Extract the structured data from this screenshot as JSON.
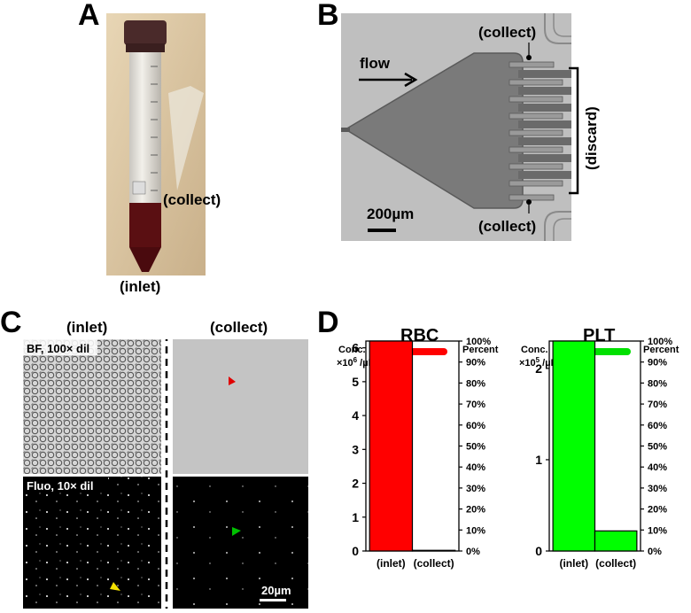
{
  "panels": {
    "a": {
      "letter": "A",
      "collect_label": "(collect)",
      "inlet_label": "(inlet)"
    },
    "b": {
      "letter": "B",
      "collect_top": "(collect)",
      "collect_bottom": "(collect)",
      "flow_label": "flow",
      "discard_label": "(discard)",
      "scale_label": "200µm"
    },
    "c": {
      "letter": "C",
      "inlet_header": "(inlet)",
      "collect_header": "(collect)",
      "bf_label": "BF, 100× dil",
      "fluo_label": "Fluo, 10× dil",
      "scale_label": "20µm"
    },
    "d": {
      "letter": "D"
    }
  },
  "chart_data": [
    {
      "type": "bar",
      "title": "RBC",
      "legend_color": "#ff0000",
      "bar_color": "#ff0000",
      "categories": [
        "(inlet)",
        "(collect)"
      ],
      "values": [
        6.2,
        0.02
      ],
      "ylabel_left": "Conc. ×10⁶ /µL",
      "ylabel_right": "Percent",
      "yticks_left": [
        "0",
        "1",
        "2",
        "3",
        "4",
        "5",
        "6"
      ],
      "yticks_right": [
        "0%",
        "10%",
        "20%",
        "30%",
        "40%",
        "50%",
        "60%",
        "70%",
        "80%",
        "90%",
        "100%"
      ],
      "ylim": [
        0,
        6.2
      ]
    },
    {
      "type": "bar",
      "title": "PLT",
      "legend_color": "#00e000",
      "bar_color": "#00ff00",
      "categories": [
        "(inlet)",
        "(collect)"
      ],
      "values": [
        2.3,
        0.22
      ],
      "ylabel_left": "Conc. ×10⁵ /µL",
      "ylabel_right": "Percent",
      "yticks_left": [
        "0",
        "1",
        "2"
      ],
      "yticks_right": [
        "0%",
        "10%",
        "20%",
        "30%",
        "40%",
        "50%",
        "60%",
        "70%",
        "80%",
        "90%",
        "100%"
      ],
      "ylim": [
        0,
        2.3
      ]
    }
  ]
}
